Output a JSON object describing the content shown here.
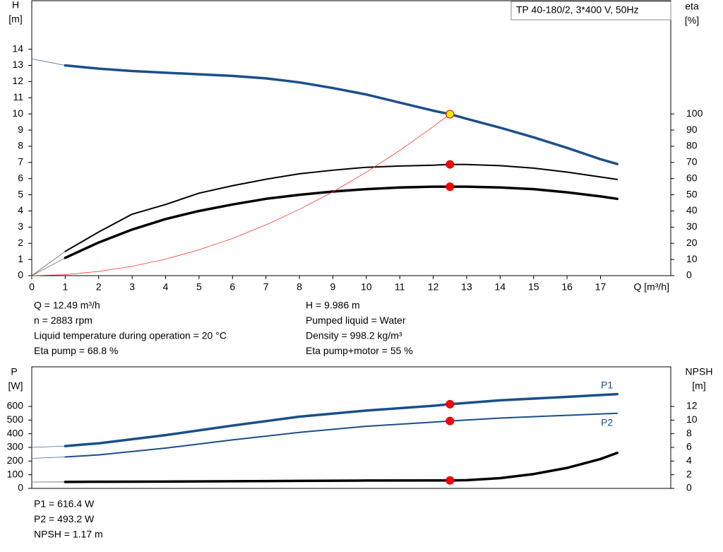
{
  "chart_data": [
    {
      "type": "line",
      "title": "TP 40-180/2, 3*400 V, 50Hz",
      "xlabel": "Q [m³/h]",
      "ylabel": [
        "H",
        "[m]"
      ],
      "y2label": [
        "eta",
        "[%]"
      ],
      "xlim": [
        0,
        19.1
      ],
      "ylim": [
        0,
        17
      ],
      "y2lim": [
        0,
        170
      ],
      "xticks": [
        0,
        1,
        2,
        3,
        4,
        5,
        6,
        7,
        8,
        9,
        10,
        11,
        12,
        13,
        14,
        15,
        16,
        17
      ],
      "yticks": [
        0,
        1,
        2,
        3,
        4,
        5,
        6,
        7,
        8,
        9,
        10,
        11,
        12,
        13,
        14
      ],
      "y2ticks": [
        0,
        10,
        20,
        30,
        40,
        50,
        60,
        70,
        80,
        90,
        100
      ],
      "series": [
        {
          "kind": "line",
          "color": "#4a6f99",
          "width": 0.8,
          "x": [
            0,
            0.5,
            1
          ],
          "values": [
            13.4,
            13.2,
            13.0
          ]
        },
        {
          "kind": "line",
          "color": "#1b4f8a",
          "width": 3.5,
          "x": [
            1,
            2,
            3,
            4,
            5,
            6,
            7,
            8,
            9,
            10,
            11,
            12,
            12.5,
            13,
            14,
            15,
            16,
            17,
            17.5
          ],
          "values": [
            13.0,
            12.8,
            12.65,
            12.55,
            12.45,
            12.35,
            12.2,
            11.95,
            11.6,
            11.2,
            10.7,
            10.2,
            9.986,
            9.7,
            9.15,
            8.55,
            7.9,
            7.2,
            6.9
          ]
        },
        {
          "kind": "line",
          "axis": "y2",
          "color": "#666666",
          "width": 0.8,
          "x": [
            0,
            1
          ],
          "values": [
            0,
            15
          ]
        },
        {
          "kind": "line",
          "axis": "y2",
          "color": "#000000",
          "width": 2,
          "x": [
            1,
            2,
            3,
            4,
            5,
            6,
            7,
            8,
            9,
            10,
            11,
            12,
            12.5,
            13,
            14,
            15,
            16,
            17,
            17.5
          ],
          "values": [
            15,
            27,
            38,
            44,
            51,
            55.6,
            59.6,
            63,
            65.2,
            67,
            67.8,
            68.3,
            68.8,
            68.7,
            68,
            66.5,
            64,
            61,
            59.5
          ]
        },
        {
          "kind": "line",
          "axis": "y2",
          "color": "#666666",
          "width": 0.8,
          "x": [
            0,
            1
          ],
          "values": [
            0,
            11
          ]
        },
        {
          "kind": "line",
          "axis": "y2",
          "color": "#000000",
          "width": 3.5,
          "x": [
            1,
            2,
            3,
            4,
            5,
            6,
            7,
            8,
            9,
            10,
            11,
            12,
            12.5,
            13,
            14,
            15,
            16,
            17,
            17.5
          ],
          "values": [
            11,
            20.5,
            28.5,
            35,
            40,
            44,
            47.5,
            50,
            52,
            53.5,
            54.5,
            55,
            55,
            55,
            54.5,
            53.5,
            51.5,
            49,
            47.5
          ]
        },
        {
          "kind": "line",
          "color": "#ff3030",
          "width": 0.8,
          "x": [
            0,
            1,
            2,
            3,
            4,
            5,
            6,
            7,
            8,
            9,
            10,
            11,
            12,
            12.5
          ],
          "values": [
            0,
            0.06,
            0.26,
            0.58,
            1.02,
            1.6,
            2.3,
            3.14,
            4.1,
            5.18,
            6.4,
            7.74,
            9.22,
            9.986
          ]
        },
        {
          "kind": "point",
          "color": "#ffe600",
          "edge": "#e00000",
          "x": [
            12.5
          ],
          "values": [
            9.986
          ]
        },
        {
          "kind": "point",
          "axis": "y2",
          "color": "#ff0000",
          "edge": "#e00000",
          "x": [
            12.5,
            12.5
          ],
          "values": [
            68.8,
            55
          ]
        }
      ],
      "annotations": [
        [
          "Q = 12.49 m³/h",
          "n = 2883 rpm",
          "Liquid temperature during operation = 20 °C",
          "Eta pump = 68.8 %"
        ],
        [
          "H = 9.986 m",
          "Pumped liquid = Water",
          "Density = 998.2 kg/m³",
          "Eta pump+motor = 55 %"
        ]
      ]
    },
    {
      "type": "line",
      "ylabel": [
        "P",
        "[W]"
      ],
      "y2label": [
        "NPSH",
        "[m]"
      ],
      "xlim": [
        0,
        19.1
      ],
      "ylim": [
        0,
        890
      ],
      "y2lim": [
        0,
        17.8
      ],
      "yticks": [
        0,
        100,
        200,
        300,
        400,
        500,
        600
      ],
      "y2ticks": [
        0,
        2,
        4,
        6,
        8,
        10,
        12
      ],
      "series": [
        {
          "kind": "line",
          "color": "#4a6f99",
          "width": 0.8,
          "x": [
            0,
            1
          ],
          "values": [
            300,
            310
          ]
        },
        {
          "kind": "line",
          "name": "P1",
          "color": "#1b4f8a",
          "width": 3.5,
          "x": [
            1,
            2,
            4,
            6,
            8,
            10,
            12,
            12.5,
            14,
            16,
            17.5
          ],
          "values": [
            310,
            330,
            390,
            460,
            525,
            570,
            605,
            616.4,
            645,
            670,
            690
          ]
        },
        {
          "kind": "line",
          "color": "#4a6f99",
          "width": 0.8,
          "x": [
            0,
            1
          ],
          "values": [
            220,
            230
          ]
        },
        {
          "kind": "line",
          "name": "P2",
          "color": "#1b4f8a",
          "width": 2,
          "x": [
            1,
            2,
            4,
            6,
            8,
            10,
            12,
            12.5,
            14,
            16,
            17.5
          ],
          "values": [
            230,
            245,
            295,
            355,
            410,
            455,
            485,
            493.2,
            515,
            535,
            550
          ]
        },
        {
          "kind": "line",
          "axis": "y2",
          "color": "#666666",
          "width": 0.8,
          "x": [
            0,
            1
          ],
          "values": [
            0.93,
            0.95
          ]
        },
        {
          "kind": "line",
          "axis": "y2",
          "color": "#000000",
          "width": 3.5,
          "x": [
            1,
            2,
            4,
            6,
            8,
            10,
            12,
            12.5,
            13,
            14,
            15,
            16,
            17,
            17.5
          ],
          "values": [
            0.95,
            0.97,
            1.0,
            1.05,
            1.1,
            1.15,
            1.16,
            1.17,
            1.2,
            1.5,
            2.1,
            3.0,
            4.3,
            5.2
          ]
        },
        {
          "kind": "point",
          "color": "#ff0000",
          "edge": "#e00000",
          "x": [
            12.5,
            12.5
          ],
          "values": [
            616.4,
            493.2
          ]
        },
        {
          "kind": "point",
          "axis": "y2",
          "color": "#ff0000",
          "edge": "#e00000",
          "x": [
            12.5
          ],
          "values": [
            1.17
          ]
        }
      ],
      "annotations": [
        [
          "P1 = 616.4 W",
          "P2 = 493.2 W",
          "NPSH = 1.17 m"
        ]
      ]
    }
  ]
}
